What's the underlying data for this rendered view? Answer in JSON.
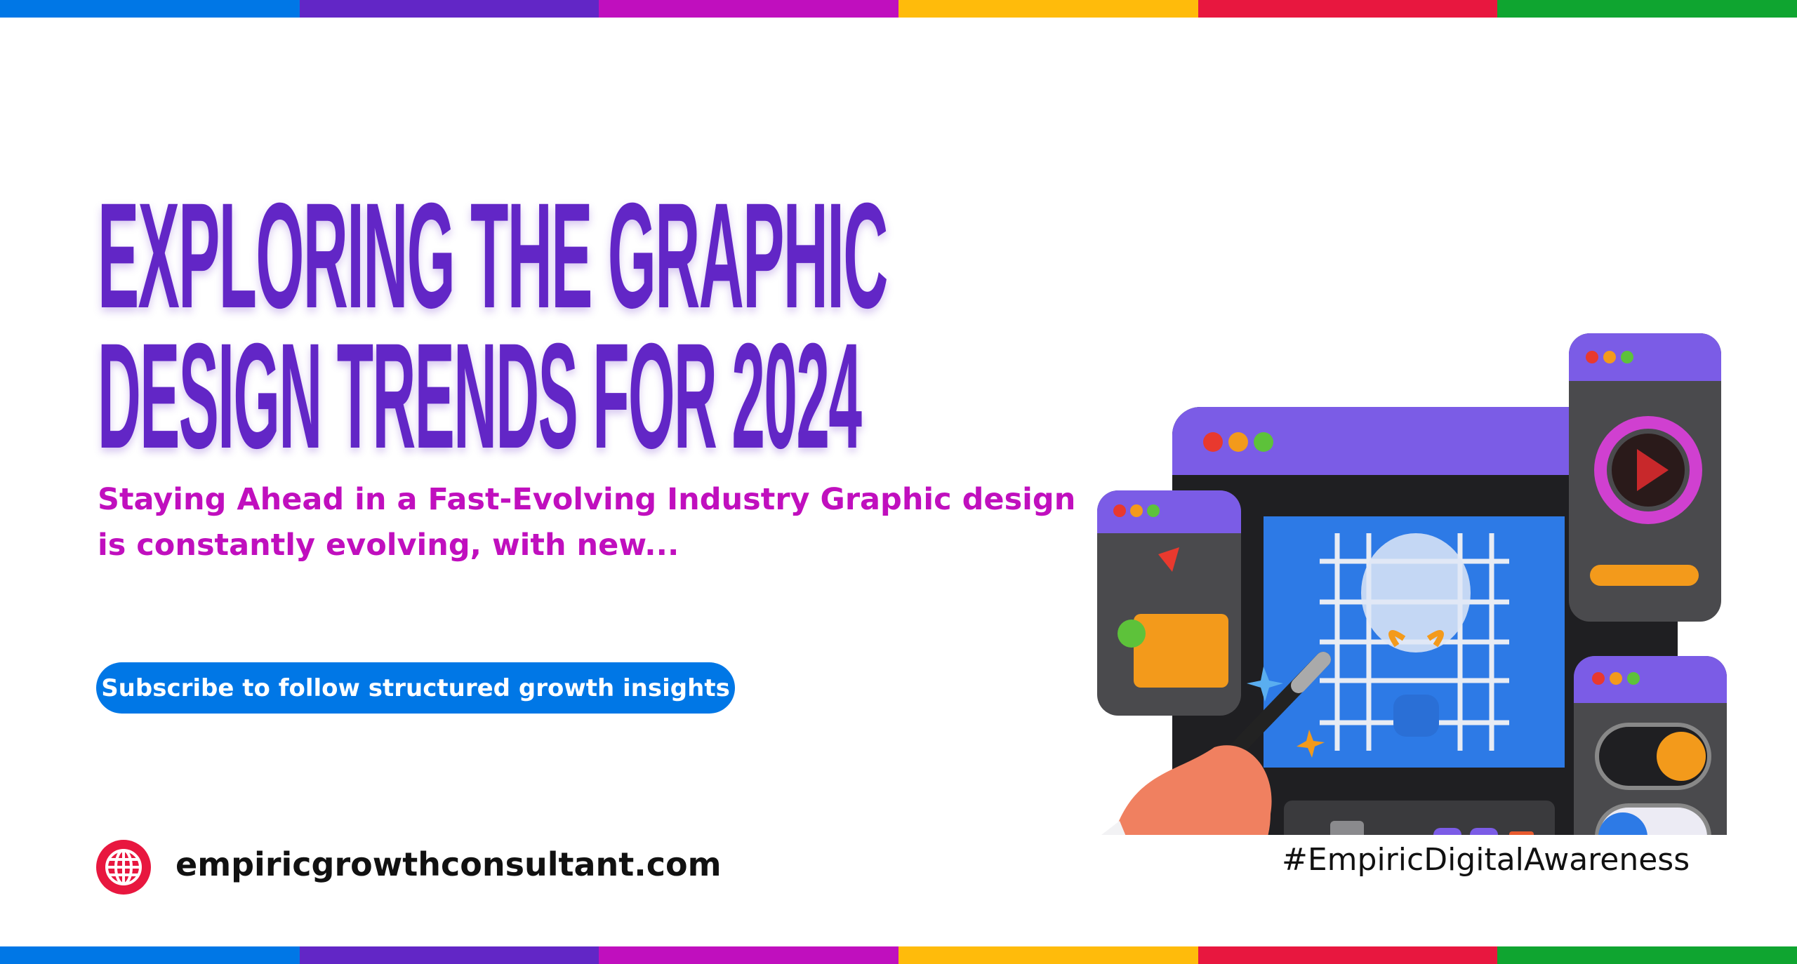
{
  "colors": {
    "bars": [
      "#0077e6",
      "#6226c6",
      "#c00fbe",
      "#ffbb0b",
      "#e8173f",
      "#0fa530"
    ],
    "title": "#6226c6",
    "subtitle": "#c00fbe",
    "button": "#0077e6",
    "globe": "#e8173f"
  },
  "title": {
    "line1": "EXPLORING THE GRAPHIC",
    "line2": "DESIGN TRENDS FOR 2024"
  },
  "subtitle": "Staying Ahead in a Fast-Evolving Industry Graphic design is constantly evolving, with new...",
  "cta": {
    "label": "Subscribe to follow structured growth insights"
  },
  "footer": {
    "website": "empiricgrowthconsultant.com",
    "website_icon": "globe-icon",
    "hashtag": "#EmpiricDigitalAwareness"
  },
  "illustration": {
    "icons": [
      "pen-tool-icon",
      "magic-wand-icon",
      "brush-icon",
      "ruler-pencil-icon",
      "undo-icon",
      "redo-icon",
      "color-swatch-icon",
      "folder-icon",
      "color-wheel-icon",
      "lightbulb-icon",
      "toggle-icon"
    ]
  }
}
